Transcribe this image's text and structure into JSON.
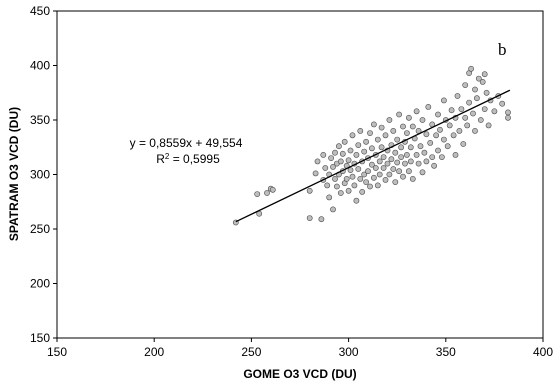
{
  "chart_data": {
    "type": "scatter",
    "xlabel": "GOME O3 VCD (DU)",
    "ylabel": "SPATRAM O3 VCD (DU)",
    "xlim": [
      150,
      400
    ],
    "ylim": [
      150,
      450
    ],
    "xticks": [
      150,
      200,
      250,
      300,
      350,
      400
    ],
    "yticks": [
      150,
      200,
      250,
      300,
      350,
      400,
      450
    ],
    "grid": false,
    "panel_label": "b",
    "point_style": {
      "fill": "#bdbdbd",
      "stroke": "#4a4a4a"
    },
    "trendline": {
      "slope": 0.8559,
      "intercept": 49.554,
      "x_range": [
        242,
        383
      ],
      "equation_text": "y = 0,8559x + 49,554",
      "r2_prefix": "R",
      "r2_suffix": " = 0,5995"
    },
    "points": [
      [
        242,
        256
      ],
      [
        253,
        282
      ],
      [
        254,
        264
      ],
      [
        258,
        283
      ],
      [
        260,
        287
      ],
      [
        261,
        286
      ],
      [
        280,
        260
      ],
      [
        280,
        285
      ],
      [
        283,
        301
      ],
      [
        284,
        312
      ],
      [
        286,
        259
      ],
      [
        287,
        295
      ],
      [
        287,
        318
      ],
      [
        288,
        306
      ],
      [
        289,
        290
      ],
      [
        290,
        279
      ],
      [
        290,
        300
      ],
      [
        291,
        315
      ],
      [
        292,
        268
      ],
      [
        292,
        307
      ],
      [
        293,
        320
      ],
      [
        293,
        296
      ],
      [
        294,
        289
      ],
      [
        294,
        310
      ],
      [
        295,
        300
      ],
      [
        295,
        326
      ],
      [
        296,
        283
      ],
      [
        296,
        312
      ],
      [
        297,
        303
      ],
      [
        297,
        319
      ],
      [
        298,
        292
      ],
      [
        298,
        330
      ],
      [
        299,
        308
      ],
      [
        299,
        296
      ],
      [
        300,
        313
      ],
      [
        300,
        285
      ],
      [
        301,
        322
      ],
      [
        301,
        304
      ],
      [
        302,
        298
      ],
      [
        302,
        336
      ],
      [
        303,
        310
      ],
      [
        303,
        290
      ],
      [
        304,
        318
      ],
      [
        304,
        276
      ],
      [
        305,
        305
      ],
      [
        305,
        327
      ],
      [
        306,
        296
      ],
      [
        306,
        340
      ],
      [
        307,
        312
      ],
      [
        307,
        284
      ],
      [
        308,
        321
      ],
      [
        308,
        300
      ],
      [
        309,
        330
      ],
      [
        309,
        293
      ],
      [
        310,
        315
      ],
      [
        310,
        303
      ],
      [
        311,
        338
      ],
      [
        311,
        289
      ],
      [
        312,
        309
      ],
      [
        312,
        324
      ],
      [
        313,
        297
      ],
      [
        313,
        346
      ],
      [
        314,
        318
      ],
      [
        314,
        306
      ],
      [
        315,
        290
      ],
      [
        315,
        332
      ],
      [
        316,
        312
      ],
      [
        316,
        300
      ],
      [
        317,
        325
      ],
      [
        317,
        343
      ],
      [
        318,
        306
      ],
      [
        318,
        316
      ],
      [
        319,
        295
      ],
      [
        319,
        336
      ],
      [
        320,
        322
      ],
      [
        320,
        310
      ],
      [
        321,
        350
      ],
      [
        321,
        300
      ],
      [
        322,
        327
      ],
      [
        322,
        314
      ],
      [
        323,
        305
      ],
      [
        323,
        340
      ],
      [
        324,
        320
      ],
      [
        324,
        293
      ],
      [
        325,
        332
      ],
      [
        325,
        311
      ],
      [
        326,
        355
      ],
      [
        326,
        303
      ],
      [
        327,
        325
      ],
      [
        327,
        316
      ],
      [
        328,
        344
      ],
      [
        328,
        298
      ],
      [
        329,
        330
      ],
      [
        329,
        310
      ],
      [
        330,
        338
      ],
      [
        330,
        318
      ],
      [
        331,
        303
      ],
      [
        331,
        352
      ],
      [
        332,
        325
      ],
      [
        332,
        312
      ],
      [
        333,
        344
      ],
      [
        333,
        296
      ],
      [
        334,
        333
      ],
      [
        335,
        318
      ],
      [
        335,
        358
      ],
      [
        336,
        310
      ],
      [
        336,
        340
      ],
      [
        337,
        326
      ],
      [
        338,
        302
      ],
      [
        338,
        350
      ],
      [
        339,
        320
      ],
      [
        340,
        337
      ],
      [
        340,
        312
      ],
      [
        341,
        362
      ],
      [
        342,
        329
      ],
      [
        343,
        346
      ],
      [
        343,
        316
      ],
      [
        344,
        308
      ],
      [
        345,
        336
      ],
      [
        346,
        355
      ],
      [
        346,
        322
      ],
      [
        347,
        341
      ],
      [
        348,
        316
      ],
      [
        349,
        368
      ],
      [
        349,
        332
      ],
      [
        350,
        350
      ],
      [
        351,
        326
      ],
      [
        352,
        345
      ],
      [
        353,
        359
      ],
      [
        354,
        336
      ],
      [
        355,
        352
      ],
      [
        355,
        318
      ],
      [
        356,
        372
      ],
      [
        357,
        340
      ],
      [
        358,
        360
      ],
      [
        359,
        328
      ],
      [
        360,
        382
      ],
      [
        360,
        352
      ],
      [
        361,
        345
      ],
      [
        362,
        393
      ],
      [
        362,
        366
      ],
      [
        363,
        397
      ],
      [
        364,
        356
      ],
      [
        365,
        378
      ],
      [
        365,
        340
      ],
      [
        366,
        370
      ],
      [
        367,
        388
      ],
      [
        368,
        350
      ],
      [
        369,
        385
      ],
      [
        370,
        360
      ],
      [
        370,
        392
      ],
      [
        371,
        375
      ],
      [
        372,
        345
      ],
      [
        373,
        368
      ],
      [
        375,
        358
      ],
      [
        377,
        372
      ],
      [
        379,
        365
      ],
      [
        382,
        352
      ],
      [
        382,
        357
      ]
    ]
  }
}
